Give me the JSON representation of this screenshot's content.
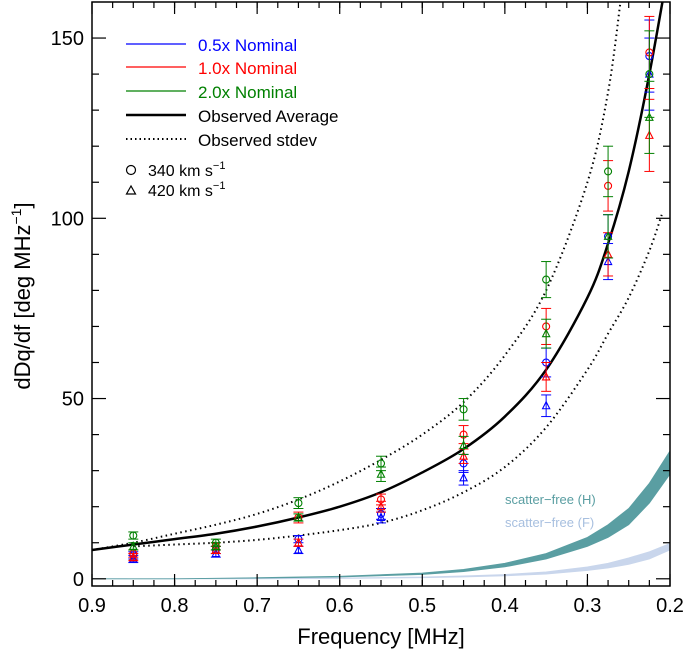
{
  "chart_data": {
    "type": "scatter",
    "xlabel": "Frequency [MHz]",
    "ylabel": "dDq/df [deg MHz",
    "ylabel_sup": "−1",
    "ylabel_close": "]",
    "xlim": [
      0.9,
      0.2
    ],
    "ylim": [
      -2,
      160
    ],
    "x_ticks": [
      0.9,
      0.8,
      0.7,
      0.6,
      0.5,
      0.4,
      0.3,
      0.2
    ],
    "x_tick_labels": [
      "0.9",
      "0.8",
      "0.7",
      "0.6",
      "0.5",
      "0.4",
      "0.3",
      "0.2"
    ],
    "y_ticks": [
      0,
      50,
      100,
      150
    ],
    "y_tick_labels": [
      "0",
      "50",
      "100",
      "150"
    ],
    "grid": false,
    "legend": {
      "placement": "top-left",
      "entries": [
        {
          "label": "0.5x Nominal",
          "color": "#0000ff",
          "style": "solid-thin"
        },
        {
          "label": "1.0x Nominal",
          "color": "#ff0000",
          "style": "solid-thin"
        },
        {
          "label": "2.0x Nominal",
          "color": "#008000",
          "style": "solid-thin"
        },
        {
          "label": "Observed Average",
          "color": "#000000",
          "style": "solid-thick"
        },
        {
          "label": "Observed stdev",
          "color": "#000000",
          "style": "dotted"
        }
      ],
      "markers": [
        {
          "label": "340 km s",
          "sup": "−1",
          "marker": "circle"
        },
        {
          "label": "420 km s",
          "sup": "−1",
          "marker": "triangle"
        }
      ]
    },
    "annotations": [
      {
        "text": "scatter−free (H)",
        "color": "#5a9ea2"
      },
      {
        "text": "scatter−free (F)",
        "color": "#a7bfdf"
      }
    ],
    "observed_average": {
      "color": "#000000",
      "x": [
        0.9,
        0.85,
        0.8,
        0.75,
        0.7,
        0.65,
        0.6,
        0.55,
        0.5,
        0.45,
        0.4,
        0.35,
        0.3,
        0.275,
        0.25,
        0.225,
        0.2
      ],
      "y": [
        8,
        9.5,
        11,
        12.5,
        14.5,
        17,
        20,
        24,
        29.5,
        36,
        45,
        58,
        78,
        93,
        113,
        140,
        172
      ]
    },
    "observed_stdev_upper": {
      "x": [
        0.9,
        0.85,
        0.8,
        0.75,
        0.7,
        0.65,
        0.6,
        0.55,
        0.5,
        0.45,
        0.4,
        0.35,
        0.3,
        0.275,
        0.26
      ],
      "y": [
        8,
        10,
        12.5,
        15,
        18,
        22,
        27,
        33,
        40,
        49,
        62,
        80,
        110,
        135,
        160
      ]
    },
    "observed_stdev_lower": {
      "x": [
        0.85,
        0.8,
        0.75,
        0.7,
        0.65,
        0.6,
        0.55,
        0.5,
        0.45,
        0.4,
        0.35,
        0.3,
        0.275,
        0.25,
        0.225,
        0.21
      ],
      "y": [
        9,
        9.5,
        10,
        10.8,
        12,
        13.5,
        15.5,
        19,
        24,
        31,
        42,
        58,
        68,
        78,
        91,
        101
      ]
    },
    "scatter_free_H": {
      "color": "#5a9ea2",
      "x": [
        0.9,
        0.8,
        0.7,
        0.6,
        0.5,
        0.45,
        0.4,
        0.35,
        0.3,
        0.275,
        0.25,
        0.225,
        0.2
      ],
      "y_low": [
        0,
        0,
        0.2,
        0.5,
        1.2,
        2,
        3.3,
        5.5,
        9,
        11.5,
        15,
        21,
        29
      ],
      "y_high": [
        0,
        0,
        0.3,
        0.7,
        1.6,
        2.6,
        4.3,
        7,
        11.5,
        15,
        19.5,
        26.5,
        35.5
      ]
    },
    "scatter_free_F": {
      "color": "#c9d6ec",
      "x": [
        0.9,
        0.7,
        0.6,
        0.5,
        0.45,
        0.4,
        0.35,
        0.3,
        0.275,
        0.25,
        0.225,
        0.2
      ],
      "y_low": [
        0,
        0,
        0.1,
        0.3,
        0.5,
        0.8,
        1.3,
        2.3,
        3,
        4,
        5.5,
        8
      ],
      "y_high": [
        0,
        0.1,
        0.2,
        0.5,
        0.8,
        1.2,
        1.9,
        3.3,
        4.3,
        5.8,
        7.5,
        9.8
      ]
    },
    "series": [
      {
        "color": "#0000ff",
        "marker": "circle",
        "x": [
          0.85,
          0.75,
          0.65,
          0.55,
          0.45,
          0.35,
          0.275,
          0.225
        ],
        "y": [
          6.5,
          8,
          11,
          18,
          32,
          60,
          95,
          145
        ],
        "err": [
          1,
          1,
          1,
          1.5,
          2.5,
          4,
          6,
          10
        ]
      },
      {
        "color": "#0000ff",
        "marker": "triangle",
        "x": [
          0.85,
          0.75,
          0.65,
          0.55,
          0.45,
          0.35,
          0.275,
          0.225
        ],
        "y": [
          5.5,
          7,
          8,
          17,
          28,
          48,
          88,
          140
        ],
        "err": [
          1,
          1,
          1,
          1.5,
          2,
          3,
          5,
          10
        ]
      },
      {
        "color": "#ff0000",
        "marker": "circle",
        "x": [
          0.85,
          0.75,
          0.65,
          0.55,
          0.45,
          0.35,
          0.275,
          0.225
        ],
        "y": [
          7,
          9,
          17,
          22,
          40,
          70,
          109,
          146
        ],
        "err": [
          1,
          1,
          1.5,
          1.5,
          2.5,
          5,
          7,
          10
        ]
      },
      {
        "color": "#ff0000",
        "marker": "triangle",
        "x": [
          0.85,
          0.75,
          0.65,
          0.55,
          0.45,
          0.35,
          0.275,
          0.225
        ],
        "y": [
          6,
          8,
          10,
          20,
          34,
          56,
          90,
          123
        ],
        "err": [
          1,
          1,
          1,
          1.5,
          2,
          4,
          6,
          10
        ]
      },
      {
        "color": "#008000",
        "marker": "circle",
        "x": [
          0.85,
          0.75,
          0.65,
          0.55,
          0.45,
          0.35,
          0.275,
          0.225
        ],
        "y": [
          12,
          10,
          21,
          32,
          47,
          83,
          113,
          140
        ],
        "err": [
          1,
          1,
          1.5,
          2,
          3,
          5,
          7,
          12
        ]
      },
      {
        "color": "#008000",
        "marker": "triangle",
        "x": [
          0.85,
          0.75,
          0.65,
          0.55,
          0.45,
          0.35,
          0.275,
          0.225
        ],
        "y": [
          9,
          9,
          17,
          29,
          37,
          68,
          95,
          128
        ],
        "err": [
          1,
          1,
          1,
          2,
          2.5,
          4,
          6,
          10
        ]
      }
    ]
  }
}
